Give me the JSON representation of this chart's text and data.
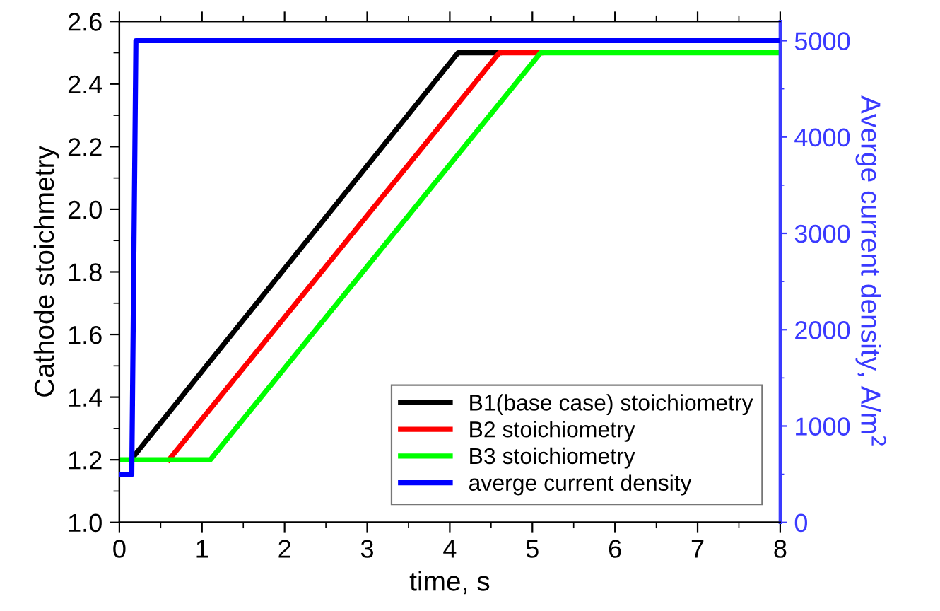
{
  "chart_data": {
    "type": "line",
    "xlabel": "time, s",
    "ylabel": "Cathode stoichmetry",
    "y2label": "Averge current density, A/m$^{2}$",
    "xlim": [
      0,
      8
    ],
    "xticks": [
      0,
      1,
      2,
      3,
      4,
      5,
      6,
      7,
      8
    ],
    "ylim": [
      1.0,
      2.6
    ],
    "yticks": [
      {
        "value": 1.0,
        "label": "1.0"
      },
      {
        "value": 1.2,
        "label": "1.2"
      },
      {
        "value": 1.4,
        "label": "1.4"
      },
      {
        "value": 1.6,
        "label": "1.6"
      },
      {
        "value": 1.8,
        "label": "1.8"
      },
      {
        "value": 2.0,
        "label": "2.0"
      },
      {
        "value": 2.2,
        "label": "2.2"
      },
      {
        "value": 2.4,
        "label": "2.4"
      },
      {
        "value": 2.6,
        "label": "2.6"
      }
    ],
    "y2lim": [
      0,
      5200
    ],
    "y2ticks": [
      0,
      1000,
      2000,
      3000,
      4000,
      5000
    ],
    "legend": "bottom right",
    "grid": false,
    "marker": "none",
    "line_style": "solid",
    "series": [
      {
        "name": "B1(base case) stoichiometry",
        "color": "#000000",
        "x": [
          0.14,
          4.1,
          4.6
        ],
        "values": [
          1.2,
          2.5,
          2.5
        ]
      },
      {
        "name": "B2 stoichiometry",
        "color": "#ff0000",
        "x": [
          0.6,
          4.6,
          5.1
        ],
        "values": [
          1.2,
          2.5,
          2.5
        ]
      },
      {
        "name": "B3 stoichiometry",
        "color": "#00ff00",
        "x": [
          0,
          1.1,
          5.1,
          8
        ],
        "values": [
          1.2,
          1.2,
          2.5,
          2.5
        ]
      },
      {
        "name": "averge current density",
        "color": "#0000ff",
        "axis": "y2",
        "x": [
          0,
          0.15,
          0.2,
          8
        ],
        "values": [
          500,
          500,
          5000,
          5000
        ]
      }
    ]
  }
}
